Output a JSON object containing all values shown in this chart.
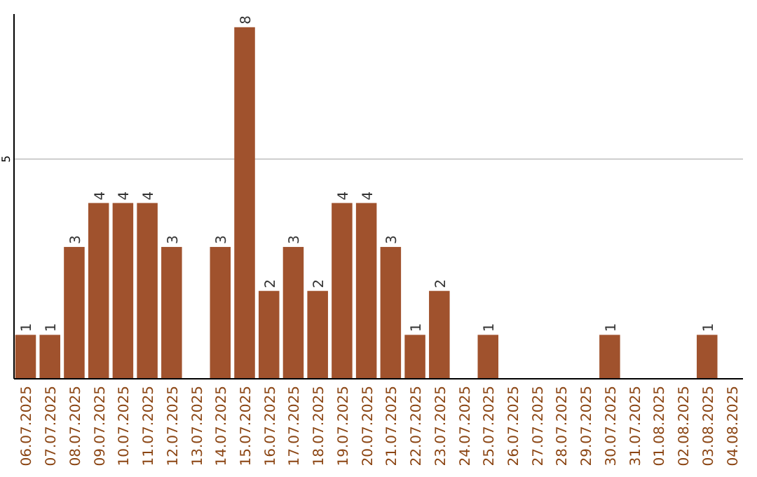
{
  "chart_data": {
    "type": "bar",
    "categories": [
      "06.07.2025",
      "07.07.2025",
      "08.07.2025",
      "09.07.2025",
      "10.07.2025",
      "11.07.2025",
      "12.07.2025",
      "13.07.2025",
      "14.07.2025",
      "15.07.2025",
      "16.07.2025",
      "17.07.2025",
      "18.07.2025",
      "19.07.2025",
      "20.07.2025",
      "21.07.2025",
      "22.07.2025",
      "23.07.2025",
      "24.07.2025",
      "25.07.2025",
      "26.07.2025",
      "27.07.2025",
      "28.07.2025",
      "29.07.2025",
      "30.07.2025",
      "31.07.2025",
      "01.08.2025",
      "02.08.2025",
      "03.08.2025",
      "04.08.2025"
    ],
    "values": [
      1,
      1,
      3,
      4,
      4,
      4,
      3,
      0,
      3,
      8,
      2,
      3,
      2,
      4,
      4,
      3,
      1,
      2,
      0,
      1,
      0,
      0,
      0,
      0,
      1,
      0,
      0,
      0,
      1,
      0
    ],
    "value_labels": [
      "1",
      "1",
      "3",
      "4",
      "4",
      "4",
      "3",
      null,
      "3",
      "8",
      "2",
      "3",
      "2",
      "4",
      "4",
      "3",
      "1",
      "2",
      null,
      "1",
      null,
      null,
      null,
      null,
      "1",
      null,
      null,
      null,
      "1",
      null
    ],
    "color": "#a0522d",
    "ylim": [
      0,
      8.3
    ],
    "yticks": [
      5
    ],
    "grid": "y"
  }
}
